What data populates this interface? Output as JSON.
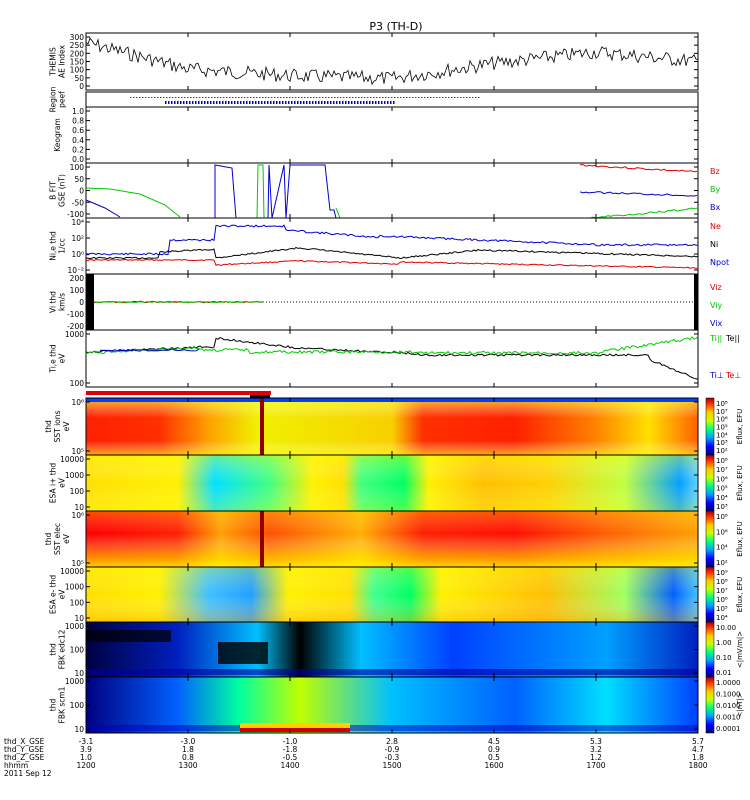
{
  "title": "P3 (TH-D)",
  "date_label": "2011 Sep 12",
  "colors": {
    "red": "#e00000",
    "green": "#00c800",
    "blue": "#0000d0",
    "black": "#000000"
  },
  "panels": {
    "ae": {
      "ylabel": [
        "THEMIS",
        "AE Index"
      ],
      "ticks": [
        "300",
        "250",
        "200",
        "150",
        "100",
        "50",
        "0"
      ]
    },
    "region": {
      "ylabel": [
        "Region",
        "peef"
      ]
    },
    "keogram": {
      "ylabel": [
        "Keogram"
      ],
      "ticks": [
        "1.0",
        "0.8",
        "0.6",
        "0.4",
        "0.2",
        "0.0"
      ]
    },
    "bfield": {
      "ylabel": [
        "B FIT",
        "GSE (nT)"
      ],
      "ticks": [
        "100",
        "50",
        "0",
        "-50",
        "-100"
      ],
      "legend": [
        "Bz",
        "By",
        "Bx"
      ]
    },
    "density": {
      "ylabel": [
        "Ni,e thd",
        "1/cc"
      ],
      "ticks": [
        "10⁴",
        "10²",
        "10⁰",
        "10⁻²"
      ],
      "legend": [
        "Ne",
        "Ni",
        "Npot"
      ]
    },
    "velocity": {
      "ylabel": [
        "Vi thd",
        "km/s"
      ],
      "ticks": [
        "200",
        "100",
        "0",
        "-100",
        "-200"
      ],
      "legend": [
        "Viz",
        "Viy",
        "Vix"
      ]
    },
    "temp": {
      "ylabel": [
        "Ti,e thd",
        "eV"
      ],
      "ticks": [
        "1000",
        "100"
      ],
      "legend_top": [
        "Ti||",
        "Te||"
      ],
      "legend_bot": [
        "Ti⊥",
        "Te⊥"
      ]
    },
    "sst_ions": {
      "ylabel": [
        "thd",
        "SST ions",
        "eV"
      ],
      "ticks": [
        "10⁶",
        "10⁵"
      ],
      "cbar": [
        "10⁸",
        "10⁷",
        "10⁶",
        "10⁵",
        "10⁴",
        "10³",
        "10²"
      ],
      "cbar_label": "Eflux, EFU"
    },
    "esa_ions": {
      "ylabel": [
        "ESA i+ thd",
        "eV"
      ],
      "ticks": [
        "10000",
        "1000",
        "100",
        "10"
      ],
      "cbar": [
        "10⁸",
        "10⁷",
        "10⁶",
        "10⁵",
        "10⁴",
        "10³"
      ],
      "cbar_label": "Eflux, EFU"
    },
    "sst_elec": {
      "ylabel": [
        "thd",
        "SST elec",
        "eV"
      ],
      "ticks": [
        "10⁶",
        "10⁵"
      ],
      "cbar": [
        "10⁸",
        "10⁶",
        "10⁴",
        "10²"
      ],
      "cbar_label": "Eflux, EFU"
    },
    "esa_elec": {
      "ylabel": [
        "ESA e- thd",
        "eV"
      ],
      "ticks": [
        "10000",
        "1000",
        "100",
        "10"
      ],
      "cbar": [
        "10⁹",
        "10⁸",
        "10⁷",
        "10⁶",
        "10⁵",
        "10⁴"
      ],
      "cbar_label": "Eflux, EFU"
    },
    "fbk_edc": {
      "ylabel": [
        "thd",
        "FBK edc12"
      ],
      "ticks": [
        "1000",
        "100",
        "10"
      ],
      "cbar": [
        "10.00",
        "1.00",
        "0.10",
        "0.01"
      ],
      "cbar_label": "<|mV/m|>"
    },
    "fbk_scm": {
      "ylabel": [
        "thd",
        "FBK scm1"
      ],
      "ticks": [
        "1000",
        "100",
        "10"
      ],
      "cbar": [
        "1.0000",
        "0.1000",
        "0.0100",
        "0.0010",
        "0.0001"
      ],
      "cbar_label": "<|nT|>"
    }
  },
  "xaxis": {
    "row_labels": [
      "thd_X_GSE",
      "thd_Y_GSE",
      "thd_Z_GSE",
      "hhmm"
    ],
    "columns": [
      [
        "-3.1",
        "3.9",
        "1.0",
        "1200"
      ],
      [
        "-3.0",
        "1.8",
        "0.8",
        "1300"
      ],
      [
        "-1.0",
        "-1.8",
        "-0.5",
        "1400"
      ],
      [
        "2.8",
        "-0.9",
        "-0.3",
        "1500"
      ],
      [
        "4.5",
        "0.9",
        "0.5",
        "1600"
      ],
      [
        "5.3",
        "3.2",
        "1.2",
        "1700"
      ],
      [
        "5.7",
        "4.7",
        "1.8",
        "1800"
      ]
    ]
  },
  "chart_data": {
    "type": "line",
    "title": "P3 (TH-D)",
    "x": [
      "1200",
      "1300",
      "1400",
      "1500",
      "1600",
      "1700",
      "1800"
    ],
    "series": [
      {
        "name": "AE Index",
        "values": [
          250,
          110,
          75,
          60,
          140,
          200,
          150
        ]
      },
      {
        "name": "Ni",
        "values": [
          1,
          100,
          30,
          20,
          5,
          1,
          0.5
        ]
      },
      {
        "name": "Ne",
        "values": [
          0.3,
          0.1,
          0.3,
          0.1,
          0.05,
          0.02,
          0.02
        ]
      }
    ],
    "ae_ylim": [
      0,
      300
    ]
  }
}
